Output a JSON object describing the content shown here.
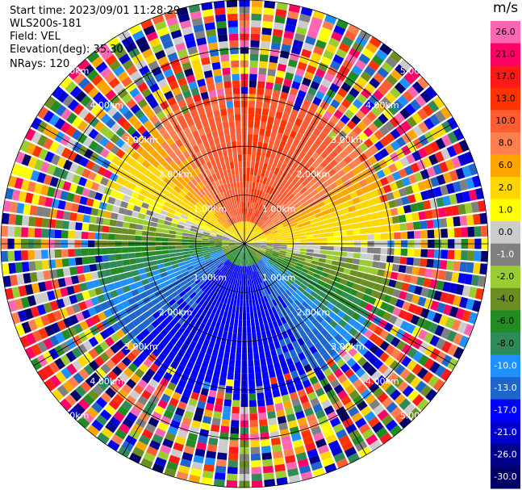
{
  "header": {
    "start_time": "Start time: 2023/09/01 11:28:29",
    "instrument": "WLS200s-181",
    "field": "Field: VEL",
    "elevation": "Elevation(deg): 35.30",
    "nrays": "NRays: 120"
  },
  "colorbar": {
    "unit": "m/s",
    "ticks": [
      "26.0",
      "21.0",
      "17.0",
      "13.0",
      "10.0",
      "8.0",
      "6.0",
      "2.0",
      "1.0",
      "0.0",
      "-1.0",
      "-2.0",
      "-4.0",
      "-6.0",
      "-8.0",
      "-10.0",
      "-13.0",
      "-17.0",
      "-21.0",
      "-26.0",
      "-30.0"
    ],
    "colors": [
      "#ff66b2",
      "#ff0066",
      "#ff1a1a",
      "#ff3300",
      "#ff5c33",
      "#ff7f50",
      "#ffa500",
      "#ffd700",
      "#ffff00",
      "#cccccc",
      "#808080",
      "#9acd32",
      "#6b8e23",
      "#228b22",
      "#2e8b57",
      "#1e90ff",
      "#1f66cc",
      "#0000ff",
      "#0000cd",
      "#00008b",
      "#000066"
    ]
  },
  "chart_data": {
    "type": "heatmap",
    "projection": "polar PPI",
    "field": "VEL",
    "units": "m/s",
    "nrays": 120,
    "range_rings_km": [
      "1.00km",
      "2.00km",
      "3.00km",
      "4.00km",
      "5.00km"
    ],
    "ring_values_km": [
      1,
      2,
      3,
      4,
      5
    ],
    "max_range_km": 5,
    "structure": [
      {
        "region": "north (near range, 0.5-2.5 km)",
        "velocity_ms": 13
      },
      {
        "region": "north-east / north-west flanks",
        "velocity_ms": 6
      },
      {
        "region": "east (zero-crossing band)",
        "velocity_ms": 2
      },
      {
        "region": "south (near range, 0.5-2.5 km)",
        "velocity_ms": -10
      },
      {
        "region": "south-east / south-west flanks",
        "velocity_ms": -6
      },
      {
        "region": "west",
        "velocity_ms": -4
      },
      {
        "region": "outer range > 3 km",
        "velocity_ms": "noise"
      }
    ],
    "colorbar_ticks": [
      26.0,
      21.0,
      17.0,
      13.0,
      10.0,
      8.0,
      6.0,
      2.0,
      1.0,
      0.0,
      -1.0,
      -2.0,
      -4.0,
      -6.0,
      -8.0,
      -10.0,
      -13.0,
      -17.0,
      -21.0,
      -26.0,
      -30.0
    ]
  }
}
